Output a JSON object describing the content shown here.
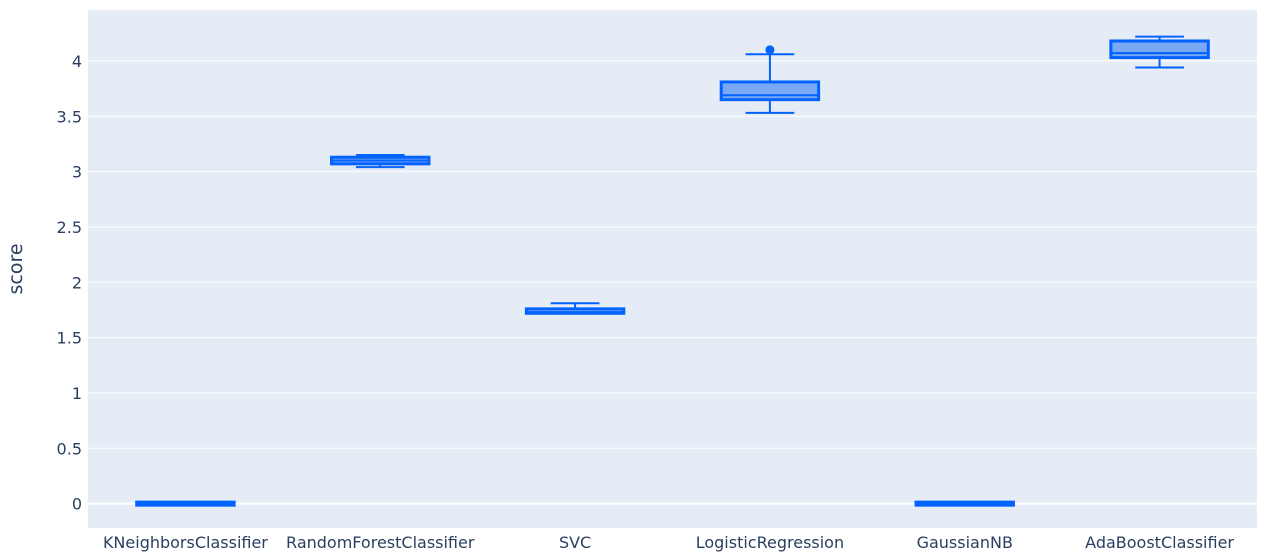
{
  "chart_data": {
    "type": "box",
    "title": "",
    "xlabel": "",
    "ylabel": "score",
    "ylim": [
      -0.22,
      4.46
    ],
    "yticks": [
      0,
      0.5,
      1,
      1.5,
      2,
      2.5,
      3,
      3.5,
      4
    ],
    "ytick_labels": [
      "0",
      "0.5",
      "1",
      "1.5",
      "2",
      "2.5",
      "3",
      "3.5",
      "4"
    ],
    "grid": true,
    "colors": {
      "plot_bg": "#e5ecf6",
      "grid": "#ffffff",
      "box_line": "#0062ff",
      "box_fill": "#79a8f5",
      "text": "#2a3f5f"
    },
    "categories": [
      "KNeighborsClassifier",
      "RandomForestClassifier",
      "SVC",
      "LogisticRegression",
      "GaussianNB",
      "AdaBoostClassifier"
    ],
    "boxes": [
      {
        "category": "KNeighborsClassifier",
        "min": 0.0,
        "q1": 0.0,
        "median": 0.0,
        "q3": 0.0,
        "max": 0.0,
        "outliers": []
      },
      {
        "category": "RandomForestClassifier",
        "min": 3.04,
        "q1": 3.07,
        "median": 3.1,
        "q3": 3.13,
        "max": 3.15,
        "outliers": []
      },
      {
        "category": "SVC",
        "min": 1.72,
        "q1": 1.72,
        "median": 1.73,
        "q3": 1.76,
        "max": 1.81,
        "outliers": []
      },
      {
        "category": "LogisticRegression",
        "min": 3.53,
        "q1": 3.65,
        "median": 3.69,
        "q3": 3.81,
        "max": 4.06,
        "outliers": [
          4.1
        ]
      },
      {
        "category": "GaussianNB",
        "min": 0.0,
        "q1": 0.0,
        "median": 0.0,
        "q3": 0.0,
        "max": 0.0,
        "outliers": []
      },
      {
        "category": "AdaBoostClassifier",
        "min": 3.94,
        "q1": 4.03,
        "median": 4.07,
        "q3": 4.18,
        "max": 4.22,
        "outliers": []
      }
    ]
  }
}
